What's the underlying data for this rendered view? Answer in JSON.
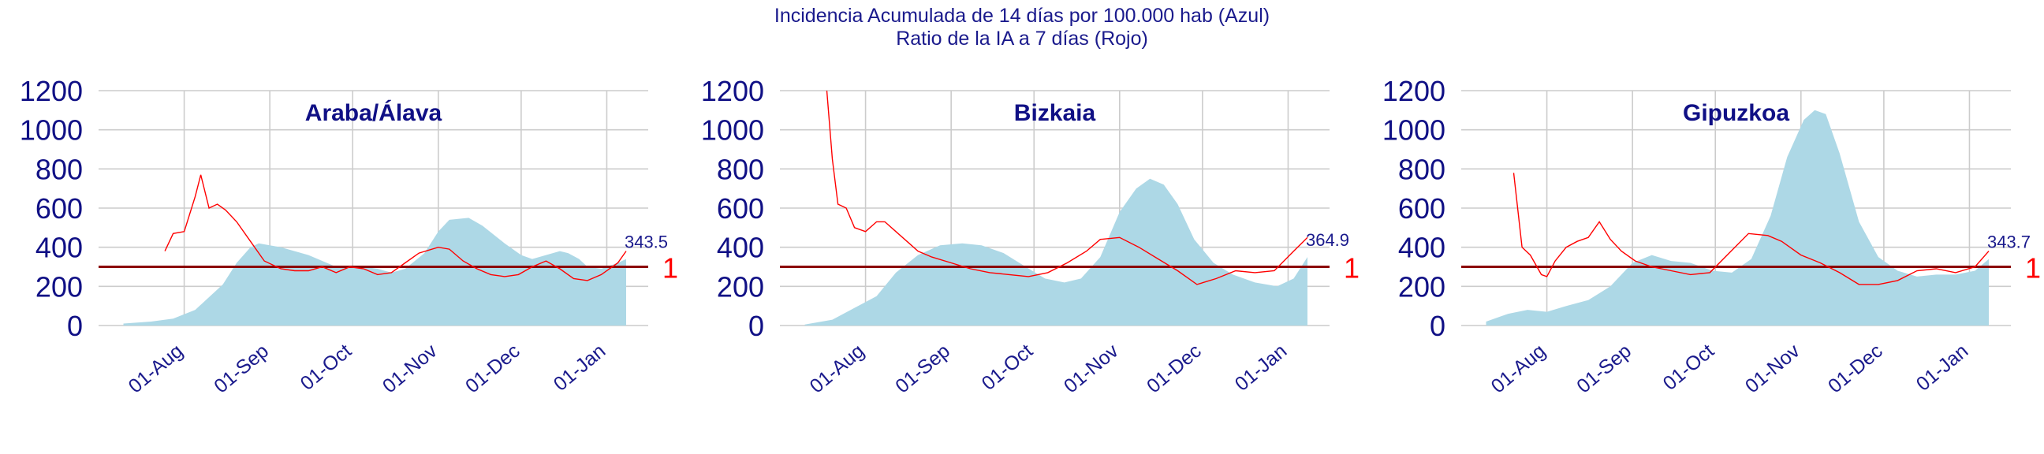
{
  "title": {
    "line1": "Incidencia Acumulada de 14 días por 100.000 hab (Azul)",
    "line2": "Ratio de la IA a 7 días (Rojo)"
  },
  "colors": {
    "incidence_fill": "#add8e6",
    "ratio_line": "#ff0000",
    "reference_line": "#8b0000",
    "text": "#101085",
    "grid": "#cccccc"
  },
  "chart_data": [
    {
      "type": "area",
      "title": "Araba/Álava",
      "x_ticks": [
        "01-Aug",
        "01-Sep",
        "01-Oct",
        "01-Nov",
        "01-Dec",
        "01-Jan"
      ],
      "y_ticks": [
        0,
        200,
        400,
        600,
        800,
        1000,
        1200
      ],
      "ylim": [
        0,
        1200
      ],
      "reference_label": "1",
      "end_label": "343.5",
      "series": [
        {
          "role": "incidence",
          "x": [
            "2020-07-10",
            "2020-07-20",
            "2020-07-28",
            "2020-08-05",
            "2020-08-15",
            "2020-08-20",
            "2020-08-25",
            "2020-08-28",
            "2020-09-05",
            "2020-09-15",
            "2020-09-25",
            "2020-10-05",
            "2020-10-10",
            "2020-10-15",
            "2020-10-20",
            "2020-10-27",
            "2020-11-01",
            "2020-11-05",
            "2020-11-12",
            "2020-11-17",
            "2020-11-25",
            "2020-12-01",
            "2020-12-05",
            "2020-12-10",
            "2020-12-15",
            "2020-12-18",
            "2020-12-22",
            "2020-12-25",
            "2020-12-30",
            "2021-01-05",
            "2021-01-08"
          ],
          "values": [
            10,
            20,
            35,
            80,
            210,
            320,
            400,
            420,
            400,
            360,
            300,
            300,
            290,
            270,
            290,
            370,
            480,
            540,
            550,
            510,
            420,
            360,
            340,
            360,
            380,
            370,
            340,
            300,
            290,
            320,
            340
          ]
        },
        {
          "role": "ratio",
          "x": [
            "2020-07-25",
            "2020-07-28",
            "2020-08-01",
            "2020-08-05",
            "2020-08-07",
            "2020-08-10",
            "2020-08-13",
            "2020-08-16",
            "2020-08-20",
            "2020-08-25",
            "2020-08-30",
            "2020-09-05",
            "2020-09-10",
            "2020-09-15",
            "2020-09-20",
            "2020-09-25",
            "2020-09-30",
            "2020-10-05",
            "2020-10-10",
            "2020-10-15",
            "2020-10-20",
            "2020-10-25",
            "2020-11-01",
            "2020-11-05",
            "2020-11-10",
            "2020-11-15",
            "2020-11-20",
            "2020-11-25",
            "2020-11-30",
            "2020-12-05",
            "2020-12-10",
            "2020-12-15",
            "2020-12-20",
            "2020-12-25",
            "2020-12-30",
            "2021-01-05",
            "2021-01-08"
          ],
          "values": [
            380,
            470,
            480,
            660,
            770,
            600,
            620,
            590,
            530,
            430,
            330,
            290,
            280,
            280,
            300,
            270,
            300,
            290,
            260,
            270,
            320,
            370,
            400,
            390,
            330,
            290,
            260,
            250,
            260,
            300,
            330,
            290,
            240,
            230,
            260,
            320,
            380
          ]
        }
      ]
    },
    {
      "type": "area",
      "title": "Bizkaia",
      "x_ticks": [
        "01-Aug",
        "01-Sep",
        "01-Oct",
        "01-Nov",
        "01-Dec",
        "01-Jan"
      ],
      "y_ticks": [
        0,
        200,
        400,
        600,
        800,
        1000,
        1200
      ],
      "ylim": [
        0,
        1200
      ],
      "reference_label": "1",
      "end_label": "364.9",
      "series": [
        {
          "role": "incidence",
          "x": [
            "2020-07-10",
            "2020-07-20",
            "2020-07-28",
            "2020-08-05",
            "2020-08-12",
            "2020-08-20",
            "2020-08-28",
            "2020-09-05",
            "2020-09-12",
            "2020-09-20",
            "2020-09-28",
            "2020-10-05",
            "2020-10-12",
            "2020-10-18",
            "2020-10-25",
            "2020-11-01",
            "2020-11-07",
            "2020-11-12",
            "2020-11-17",
            "2020-11-22",
            "2020-11-28",
            "2020-12-05",
            "2020-12-12",
            "2020-12-20",
            "2020-12-28",
            "2021-01-03",
            "2021-01-08"
          ],
          "values": [
            5,
            30,
            90,
            150,
            270,
            360,
            410,
            420,
            410,
            370,
            300,
            240,
            220,
            240,
            350,
            580,
            700,
            750,
            720,
            620,
            440,
            320,
            260,
            220,
            200,
            240,
            350
          ]
        },
        {
          "role": "ratio",
          "x": [
            "2020-07-18",
            "2020-07-20",
            "2020-07-22",
            "2020-07-25",
            "2020-07-28",
            "2020-08-01",
            "2020-08-05",
            "2020-08-08",
            "2020-08-12",
            "2020-08-16",
            "2020-08-20",
            "2020-08-25",
            "2020-09-01",
            "2020-09-08",
            "2020-09-15",
            "2020-09-22",
            "2020-09-29",
            "2020-10-06",
            "2020-10-13",
            "2020-10-20",
            "2020-10-25",
            "2020-11-01",
            "2020-11-08",
            "2020-11-15",
            "2020-11-22",
            "2020-11-29",
            "2020-12-06",
            "2020-12-13",
            "2020-12-20",
            "2020-12-27",
            "2021-01-03",
            "2021-01-08"
          ],
          "values": [
            1200,
            850,
            620,
            600,
            500,
            480,
            530,
            530,
            480,
            430,
            380,
            350,
            320,
            290,
            270,
            260,
            250,
            270,
            320,
            380,
            440,
            450,
            400,
            340,
            280,
            210,
            240,
            280,
            270,
            280,
            380,
            450
          ]
        }
      ]
    },
    {
      "type": "area",
      "title": "Gipuzkoa",
      "x_ticks": [
        "01-Aug",
        "01-Sep",
        "01-Oct",
        "01-Nov",
        "01-Dec",
        "01-Jan"
      ],
      "y_ticks": [
        0,
        200,
        400,
        600,
        800,
        1000,
        1200
      ],
      "ylim": [
        0,
        1200
      ],
      "reference_label": "1",
      "end_label": "343.7",
      "series": [
        {
          "role": "incidence",
          "x": [
            "2020-07-10",
            "2020-07-18",
            "2020-07-25",
            "2020-08-01",
            "2020-08-08",
            "2020-08-16",
            "2020-08-24",
            "2020-09-01",
            "2020-09-08",
            "2020-09-15",
            "2020-09-22",
            "2020-09-30",
            "2020-10-07",
            "2020-10-14",
            "2020-10-21",
            "2020-10-27",
            "2020-11-02",
            "2020-11-06",
            "2020-11-10",
            "2020-11-15",
            "2020-11-22",
            "2020-11-29",
            "2020-12-06",
            "2020-12-13",
            "2020-12-20",
            "2020-12-27",
            "2021-01-03",
            "2021-01-08"
          ],
          "values": [
            20,
            60,
            80,
            70,
            100,
            130,
            200,
            320,
            360,
            330,
            320,
            280,
            270,
            340,
            560,
            860,
            1050,
            1100,
            1080,
            880,
            530,
            350,
            280,
            250,
            260,
            260,
            280,
            340
          ]
        },
        {
          "role": "ratio",
          "x": [
            "2020-07-20",
            "2020-07-23",
            "2020-07-26",
            "2020-07-30",
            "2020-08-01",
            "2020-08-04",
            "2020-08-08",
            "2020-08-12",
            "2020-08-16",
            "2020-08-20",
            "2020-08-24",
            "2020-08-28",
            "2020-09-02",
            "2020-09-08",
            "2020-09-15",
            "2020-09-22",
            "2020-09-29",
            "2020-10-06",
            "2020-10-13",
            "2020-10-20",
            "2020-10-25",
            "2020-11-01",
            "2020-11-08",
            "2020-11-15",
            "2020-11-22",
            "2020-11-29",
            "2020-12-06",
            "2020-12-13",
            "2020-12-20",
            "2020-12-27",
            "2021-01-03",
            "2021-01-08"
          ],
          "values": [
            780,
            400,
            360,
            260,
            250,
            330,
            400,
            430,
            450,
            530,
            440,
            380,
            330,
            300,
            280,
            260,
            270,
            370,
            470,
            460,
            430,
            360,
            320,
            270,
            210,
            210,
            230,
            280,
            290,
            270,
            300,
            380
          ]
        }
      ]
    }
  ]
}
